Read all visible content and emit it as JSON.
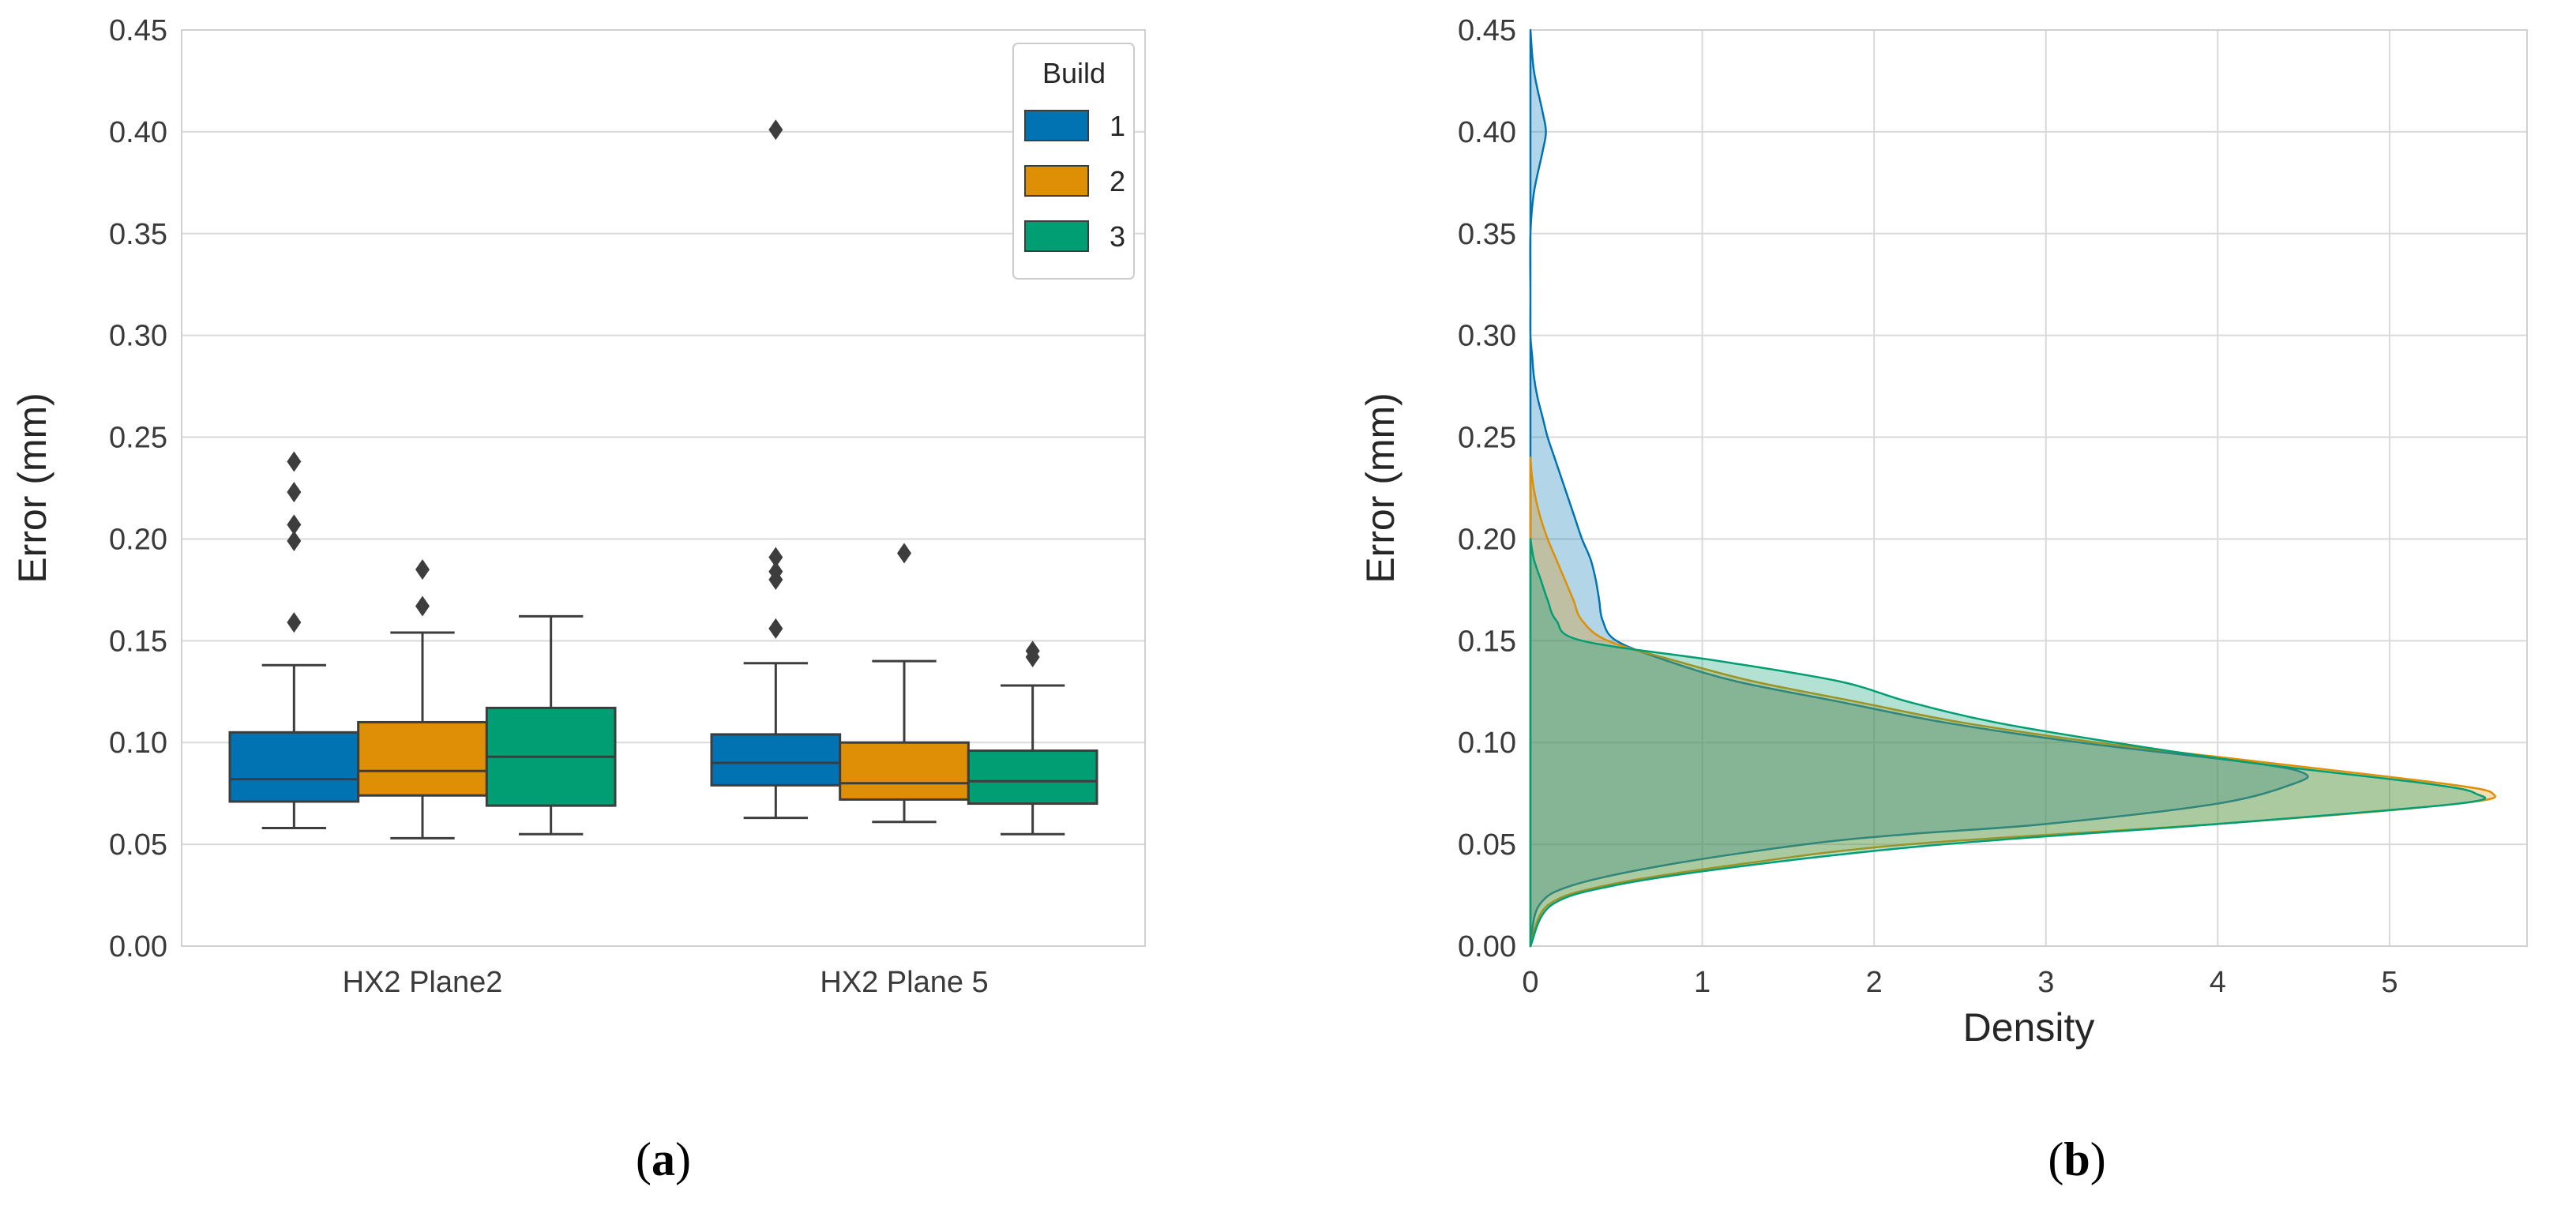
{
  "chart_data": [
    {
      "panel": "a",
      "type": "box",
      "ylabel": "Error (mm)",
      "ylim": [
        0,
        0.45
      ],
      "yticks": [
        "0.00",
        "0.05",
        "0.10",
        "0.15",
        "0.20",
        "0.25",
        "0.30",
        "0.35",
        "0.40",
        "0.45"
      ],
      "categories": [
        "HX2 Plane2",
        "HX2 Plane 5"
      ],
      "legend": {
        "title": "Build",
        "position": "top-right",
        "entries": [
          "1",
          "2",
          "3"
        ]
      },
      "series": [
        {
          "name": "1",
          "color": "#0173b2",
          "boxes": [
            {
              "whislo": 0.058,
              "q1": 0.071,
              "med": 0.082,
              "q3": 0.105,
              "whishi": 0.138,
              "fliers": [
                0.159,
                0.199,
                0.207,
                0.223,
                0.238
              ]
            },
            {
              "whislo": 0.063,
              "q1": 0.079,
              "med": 0.09,
              "q3": 0.104,
              "whishi": 0.139,
              "fliers": [
                0.156,
                0.18,
                0.184,
                0.191,
                0.401
              ]
            }
          ]
        },
        {
          "name": "2",
          "color": "#de8f05",
          "boxes": [
            {
              "whislo": 0.053,
              "q1": 0.074,
              "med": 0.086,
              "q3": 0.11,
              "whishi": 0.154,
              "fliers": [
                0.167,
                0.185
              ]
            },
            {
              "whislo": 0.061,
              "q1": 0.072,
              "med": 0.08,
              "q3": 0.1,
              "whishi": 0.14,
              "fliers": [
                0.193
              ]
            }
          ]
        },
        {
          "name": "3",
          "color": "#029e73",
          "boxes": [
            {
              "whislo": 0.055,
              "q1": 0.069,
              "med": 0.093,
              "q3": 0.117,
              "whishi": 0.162,
              "fliers": []
            },
            {
              "whislo": 0.055,
              "q1": 0.07,
              "med": 0.081,
              "q3": 0.096,
              "whishi": 0.128,
              "fliers": [
                0.142,
                0.145
              ]
            }
          ]
        }
      ]
    },
    {
      "panel": "b",
      "type": "area",
      "orientation": "horizontal-density",
      "xlabel": "Density",
      "ylabel": "Error (mm)",
      "xlim": [
        0,
        5.8
      ],
      "ylim": [
        0,
        0.45
      ],
      "xticks": [
        "0",
        "1",
        "2",
        "3",
        "4",
        "5"
      ],
      "yticks": [
        "0.00",
        "0.05",
        "0.10",
        "0.15",
        "0.20",
        "0.25",
        "0.30",
        "0.35",
        "0.40",
        "0.45"
      ],
      "series": [
        {
          "name": "1",
          "color": "#0173b2",
          "y": [
            0,
            0.02,
            0.03,
            0.04,
            0.05,
            0.055,
            0.06,
            0.07,
            0.08,
            0.085,
            0.09,
            0.1,
            0.11,
            0.12,
            0.13,
            0.14,
            0.15,
            0.16,
            0.17,
            0.18,
            0.19,
            0.2,
            0.21,
            0.22,
            0.23,
            0.24,
            0.25,
            0.26,
            0.27,
            0.28,
            0.29,
            0.3,
            0.32,
            0.35,
            0.37,
            0.39,
            0.4,
            0.41,
            0.43,
            0.45
          ],
          "density": [
            0,
            0.05,
            0.25,
            0.8,
            1.6,
            2.2,
            3.0,
            4.0,
            4.45,
            4.5,
            4.2,
            3.2,
            2.4,
            1.8,
            1.2,
            0.8,
            0.5,
            0.42,
            0.4,
            0.38,
            0.35,
            0.3,
            0.26,
            0.22,
            0.18,
            0.14,
            0.1,
            0.07,
            0.04,
            0.02,
            0.01,
            0,
            0,
            0,
            0.02,
            0.07,
            0.09,
            0.07,
            0.02,
            0
          ]
        },
        {
          "name": "2",
          "color": "#de8f05",
          "y": [
            0,
            0.02,
            0.03,
            0.04,
            0.05,
            0.06,
            0.07,
            0.075,
            0.08,
            0.09,
            0.1,
            0.11,
            0.12,
            0.13,
            0.14,
            0.15,
            0.16,
            0.17,
            0.18,
            0.19,
            0.2,
            0.21,
            0.22,
            0.23,
            0.24
          ],
          "density": [
            0,
            0.1,
            0.45,
            1.2,
            2.2,
            4.0,
            5.4,
            5.6,
            5.3,
            4.3,
            3.3,
            2.5,
            1.9,
            1.3,
            0.85,
            0.45,
            0.3,
            0.25,
            0.2,
            0.15,
            0.1,
            0.06,
            0.03,
            0.01,
            0
          ]
        },
        {
          "name": "3",
          "color": "#029e73",
          "y": [
            0,
            0.02,
            0.03,
            0.04,
            0.05,
            0.06,
            0.07,
            0.075,
            0.08,
            0.09,
            0.1,
            0.11,
            0.12,
            0.13,
            0.14,
            0.15,
            0.16,
            0.17,
            0.18,
            0.19,
            0.2
          ],
          "density": [
            0,
            0.12,
            0.5,
            1.3,
            2.4,
            4.0,
            5.4,
            5.5,
            5.2,
            4.2,
            3.4,
            2.7,
            2.2,
            1.8,
            1.1,
            0.3,
            0.15,
            0.1,
            0.06,
            0.02,
            0
          ]
        }
      ]
    }
  ],
  "captions": {
    "a_open": "(",
    "a_letter": "a",
    "a_close": ")",
    "b_open": "(",
    "b_letter": "b",
    "b_close": ")"
  }
}
